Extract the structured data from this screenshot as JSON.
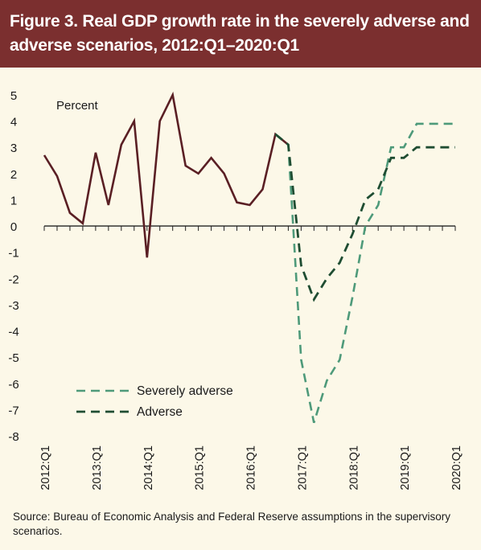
{
  "figure": {
    "title": "Figure 3. Real GDP growth rate in the severely adverse and adverse scenarios, 2012:Q1–2020:Q1",
    "source": "Source: Bureau of Economic Analysis and Federal Reserve assumptions in the supervisory scenarios."
  },
  "colors": {
    "title_bg": "#7b2f2f",
    "background": "#fcf8e8",
    "history": "#5a1f24",
    "severely_adverse": "#4e9a7a",
    "adverse": "#1f4d32"
  },
  "chart_data": {
    "type": "line",
    "unit_label": "Percent",
    "ylim": [
      -8,
      5
    ],
    "yticks": [
      5,
      4,
      3,
      2,
      1,
      0,
      -1,
      -2,
      -3,
      -4,
      -5,
      -6,
      -7,
      -8
    ],
    "ytick_labels": [
      "5",
      "4",
      "3",
      "2",
      "1",
      "0",
      "-1",
      "-2",
      "-3",
      "-4",
      "-5",
      "-6",
      "-7",
      "-8"
    ],
    "xtick_labels": [
      "2012:Q1",
      "2013:Q1",
      "2014:Q1",
      "2015:Q1",
      "2016:Q1",
      "2017:Q1",
      "2018:Q1",
      "2019:Q1",
      "2020:Q1"
    ],
    "x_start": "2012:Q1",
    "x_end": "2020:Q1",
    "legend_position": "bottom-left",
    "series": [
      {
        "key": "history",
        "style": "solid",
        "x": [
          "2012:Q1",
          "2012:Q2",
          "2012:Q3",
          "2012:Q4",
          "2013:Q1",
          "2013:Q2",
          "2013:Q3",
          "2013:Q4",
          "2014:Q1",
          "2014:Q2",
          "2014:Q3",
          "2014:Q4",
          "2015:Q1",
          "2015:Q2",
          "2015:Q3",
          "2015:Q4",
          "2016:Q1",
          "2016:Q2",
          "2016:Q3",
          "2016:Q4"
        ],
        "values": [
          2.7,
          1.9,
          0.5,
          0.1,
          2.8,
          0.8,
          3.1,
          4.0,
          -1.2,
          4.0,
          5.0,
          2.3,
          2.0,
          2.6,
          2.0,
          0.9,
          0.8,
          1.4,
          3.5,
          3.1
        ]
      },
      {
        "key": "severely_adverse",
        "name": "Severely adverse",
        "style": "dashed",
        "x": [
          "2016:Q3",
          "2016:Q4",
          "2017:Q1",
          "2017:Q2",
          "2017:Q3",
          "2017:Q4",
          "2018:Q1",
          "2018:Q2",
          "2018:Q3",
          "2018:Q4",
          "2019:Q1",
          "2019:Q2",
          "2019:Q3",
          "2019:Q4",
          "2020:Q1"
        ],
        "values": [
          3.5,
          3.1,
          -5.1,
          -7.5,
          -5.9,
          -5.1,
          -2.7,
          0.0,
          0.8,
          3.0,
          3.0,
          3.9,
          3.9,
          3.9,
          3.9
        ]
      },
      {
        "key": "adverse",
        "name": "Adverse",
        "style": "dashed",
        "x": [
          "2016:Q3",
          "2016:Q4",
          "2017:Q1",
          "2017:Q2",
          "2017:Q3",
          "2017:Q4",
          "2018:Q1",
          "2018:Q2",
          "2018:Q3",
          "2018:Q4",
          "2019:Q1",
          "2019:Q2",
          "2019:Q3",
          "2019:Q4",
          "2020:Q1"
        ],
        "values": [
          3.5,
          3.1,
          -1.5,
          -2.8,
          -2.0,
          -1.4,
          -0.3,
          1.0,
          1.4,
          2.6,
          2.6,
          3.0,
          3.0,
          3.0,
          3.0
        ]
      }
    ]
  }
}
